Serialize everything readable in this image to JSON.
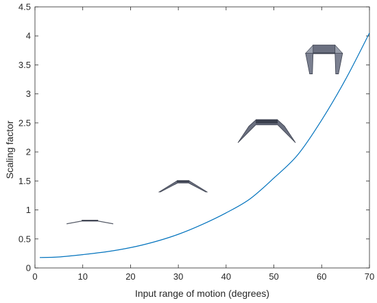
{
  "chart_data": {
    "type": "line",
    "title": "",
    "xlabel": "Input range of motion (degrees)",
    "ylabel": "Scaling factor",
    "xlim": [
      0,
      70
    ],
    "ylim": [
      0,
      4.5
    ],
    "xticks": [
      0,
      10,
      20,
      30,
      40,
      50,
      60,
      70
    ],
    "yticks": [
      0,
      0.5,
      1,
      1.5,
      2,
      2.5,
      3,
      3.5,
      4,
      4.5
    ],
    "ytick_labels": [
      "0",
      "0.5",
      "1",
      "1.5",
      "2",
      "2.5",
      "3",
      "3.5",
      "4",
      "4.5"
    ],
    "grid": false,
    "line_color": "#0072BD",
    "series": [
      {
        "x": [
          1,
          5,
          10,
          15,
          20,
          25,
          30,
          35,
          40,
          45,
          50,
          55,
          60,
          65,
          70
        ],
        "y": [
          0.18,
          0.19,
          0.23,
          0.28,
          0.35,
          0.45,
          0.58,
          0.75,
          0.95,
          1.19,
          1.55,
          1.95,
          2.55,
          3.25,
          4.05
        ]
      }
    ],
    "annotations": [
      {
        "name": "mechanism-illustration-1",
        "x": 11.5,
        "y": 0.82,
        "stage": 1
      },
      {
        "name": "mechanism-illustration-2",
        "x": 31,
        "y": 1.5,
        "stage": 2
      },
      {
        "name": "mechanism-illustration-3",
        "x": 48.5,
        "y": 2.55,
        "stage": 3
      },
      {
        "name": "mechanism-illustration-4",
        "x": 60.5,
        "y": 3.7,
        "stage": 4
      }
    ]
  }
}
